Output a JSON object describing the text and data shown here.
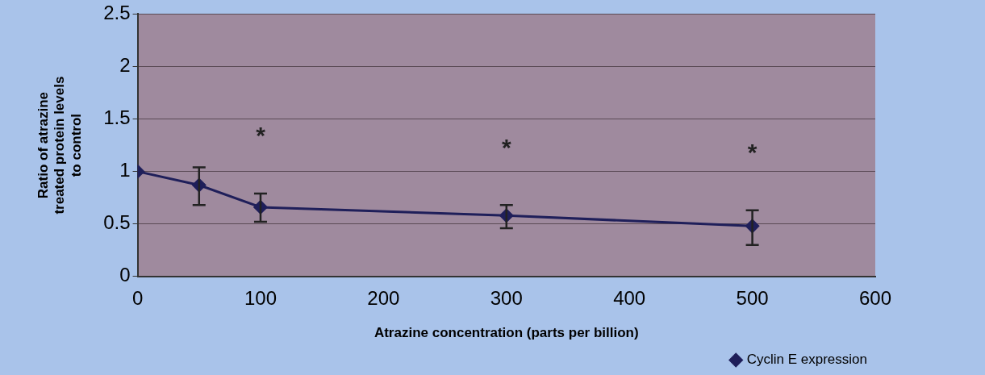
{
  "chart_data": {
    "type": "line",
    "xlabel": "Atrazine concentration (parts per billion)",
    "ylabel": "Ratio of atrazine treated protein levels to control",
    "x": [
      0,
      50,
      100,
      300,
      500
    ],
    "series": [
      {
        "name": "Cyclin E expression",
        "color": "#1f1f5a",
        "values": [
          1,
          0.87,
          0.66,
          0.58,
          0.48
        ],
        "errors": [
          null,
          [
            0.68,
            1.04
          ],
          [
            0.52,
            0.79
          ],
          [
            0.46,
            0.68
          ],
          [
            0.3,
            0.63
          ]
        ]
      }
    ],
    "xlim": [
      0,
      600
    ],
    "xticks": [
      0,
      100,
      200,
      300,
      400,
      500,
      600
    ],
    "ylim": [
      0,
      2.5
    ],
    "yticks": [
      0,
      0.5,
      1,
      1.5,
      2,
      2.5
    ],
    "annotations": [
      "*",
      "*",
      "*"
    ],
    "grid": "y",
    "legend": "bottom right",
    "marker": "diamond",
    "line_style": "solid"
  }
}
